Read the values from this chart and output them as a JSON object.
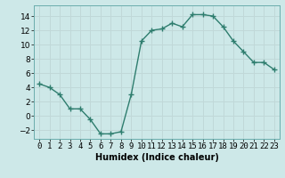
{
  "x": [
    0,
    1,
    2,
    3,
    4,
    5,
    6,
    7,
    8,
    9,
    10,
    11,
    12,
    13,
    14,
    15,
    16,
    17,
    18,
    19,
    20,
    21,
    22,
    23
  ],
  "y": [
    4.5,
    4.0,
    3.0,
    1.0,
    1.0,
    -0.5,
    -2.5,
    -2.5,
    -2.2,
    3.0,
    10.5,
    12.0,
    12.2,
    13.0,
    12.5,
    14.2,
    14.2,
    14.0,
    12.5,
    10.5,
    9.0,
    7.5,
    7.5,
    6.5
  ],
  "line_color": "#2e7d6e",
  "marker": "+",
  "marker_size": 4,
  "xlabel": "Humidex (Indice chaleur)",
  "xlim": [
    -0.5,
    23.5
  ],
  "ylim": [
    -3.2,
    15.5
  ],
  "yticks": [
    -2,
    0,
    2,
    4,
    6,
    8,
    10,
    12,
    14
  ],
  "xticks": [
    0,
    1,
    2,
    3,
    4,
    5,
    6,
    7,
    8,
    9,
    10,
    11,
    12,
    13,
    14,
    15,
    16,
    17,
    18,
    19,
    20,
    21,
    22,
    23
  ],
  "background_color": "#cde8e8",
  "grid_color": "#c0d8d8",
  "label_fontsize": 7,
  "tick_fontsize": 6.5,
  "line_width": 1.0,
  "marker_edge_width": 1.0
}
